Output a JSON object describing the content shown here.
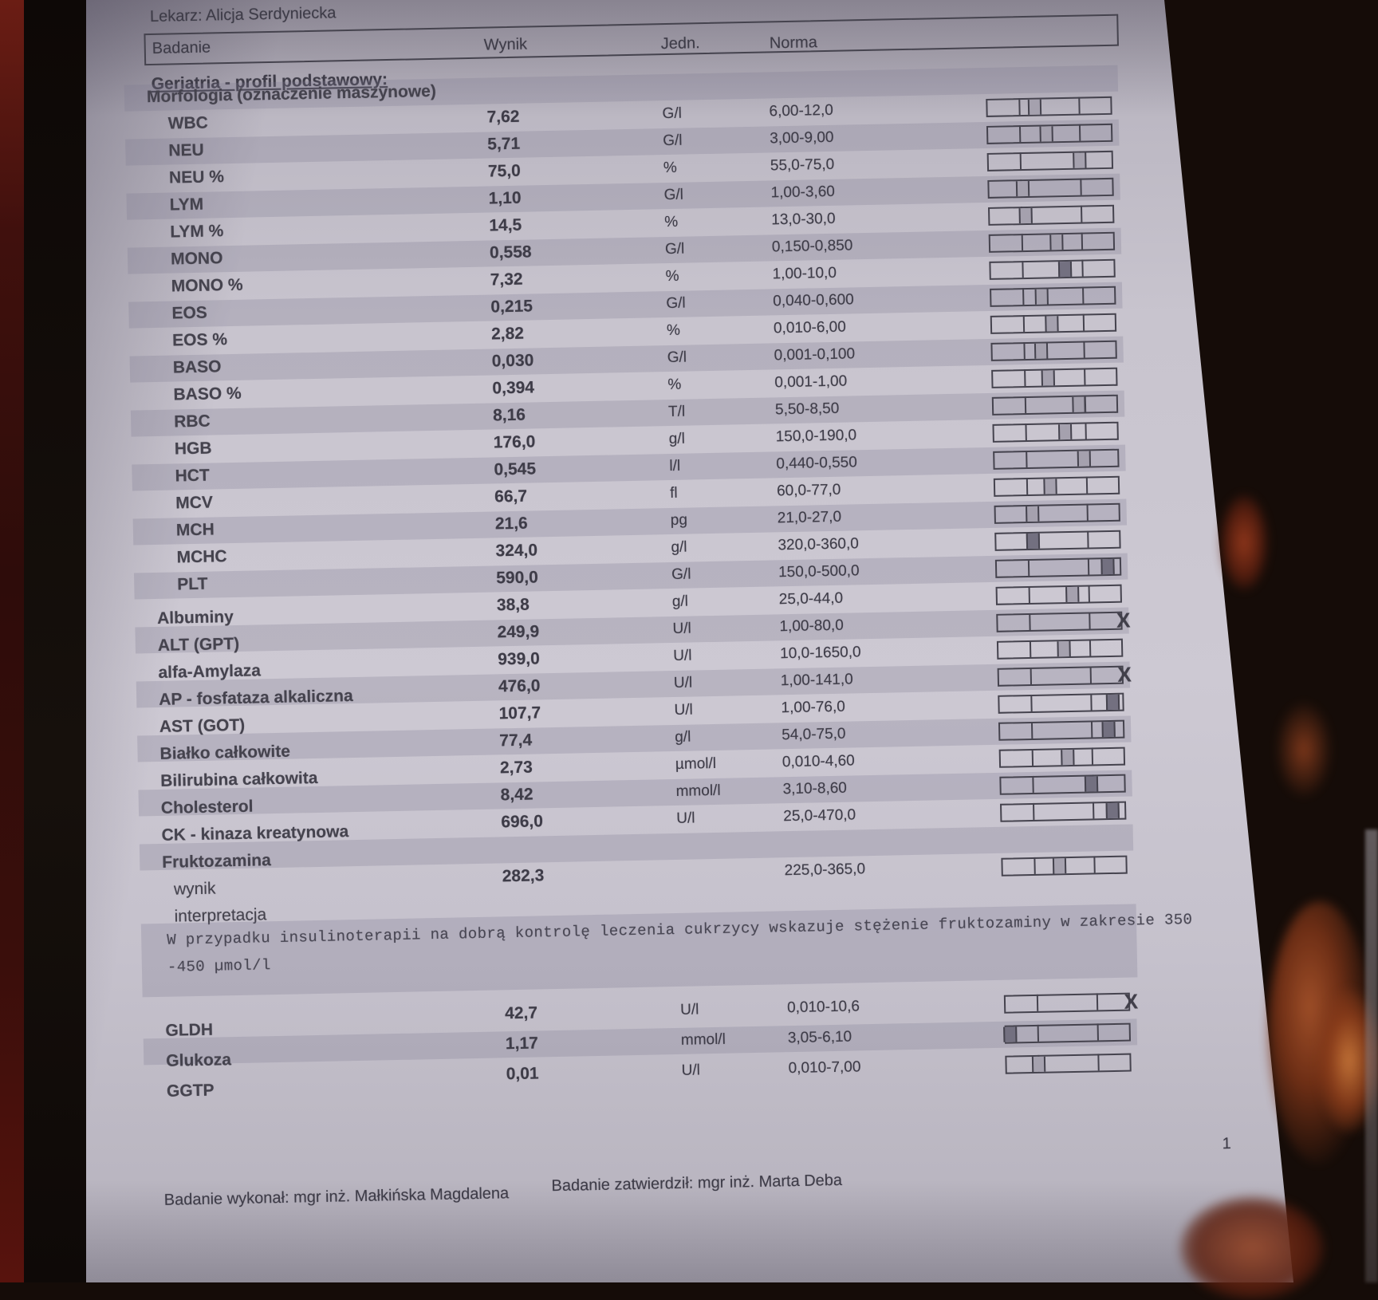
{
  "report": {
    "doctor_line": "Lekarz: Alicja Serdyniecka",
    "columns": {
      "test": "Badanie",
      "result": "Wynik",
      "unit": "Jedn.",
      "norm": "Norma"
    },
    "section_title": "Geriatria - profil podstawowy:",
    "rows": [
      {
        "label": "Morfologia (oznaczenie maszynowe)",
        "value": "",
        "unit": "",
        "norm": "",
        "type": "section",
        "band": true,
        "bar": null
      },
      {
        "label": "WBC",
        "value": "7,62",
        "unit": "G/l",
        "norm": "6,00-12,0",
        "type": "sub",
        "band": false,
        "bar": {
          "pos": 38.5
        }
      },
      {
        "label": "NEU",
        "value": "5,71",
        "unit": "G/l",
        "norm": "3,00-9,00",
        "type": "sub",
        "band": true,
        "bar": {
          "pos": 47.6
        }
      },
      {
        "label": "NEU %",
        "value": "75,0",
        "unit": "%",
        "norm": "55,0-75,0",
        "type": "sub",
        "band": false,
        "bar": {
          "pos": 74.0
        }
      },
      {
        "label": "LYM",
        "value": "1,10",
        "unit": "G/l",
        "norm": "1,00-3,60",
        "type": "sub",
        "band": true,
        "bar": {
          "pos": 27.0
        }
      },
      {
        "label": "LYM %",
        "value": "14,5",
        "unit": "%",
        "norm": "13,0-30,0",
        "type": "sub",
        "band": false,
        "bar": {
          "pos": 29.4
        }
      },
      {
        "label": "MONO",
        "value": "0,558",
        "unit": "G/l",
        "norm": "0,150-0,850",
        "type": "sub",
        "band": true,
        "bar": {
          "pos": 54.1
        }
      },
      {
        "label": "MONO %",
        "value": "7,32",
        "unit": "%",
        "norm": "1,00-10,0",
        "type": "sub",
        "band": false,
        "bar": {
          "pos": 60.1,
          "dark": true
        }
      },
      {
        "label": "EOS",
        "value": "0,215",
        "unit": "G/l",
        "norm": "0,040-0,600",
        "type": "sub",
        "band": true,
        "bar": {
          "pos": 40.6
        }
      },
      {
        "label": "EOS %",
        "value": "2,82",
        "unit": "%",
        "norm": "0,010-6,00",
        "type": "sub",
        "band": false,
        "bar": {
          "pos": 48.5
        }
      },
      {
        "label": "BASO",
        "value": "0,030",
        "unit": "G/l",
        "norm": "0,001-0,100",
        "type": "sub",
        "band": true,
        "bar": {
          "pos": 39.6
        }
      },
      {
        "label": "BASO %",
        "value": "0,394",
        "unit": "%",
        "norm": "0,001-1,00",
        "type": "sub",
        "band": false,
        "bar": {
          "pos": 44.7
        }
      },
      {
        "label": "RBC",
        "value": "8,16",
        "unit": "T/l",
        "norm": "5,50-8,50",
        "type": "sub",
        "band": true,
        "bar": {
          "pos": 69.3
        }
      },
      {
        "label": "HGB",
        "value": "176,0",
        "unit": "g/l",
        "norm": "150,0-190,0",
        "type": "sub",
        "band": false,
        "bar": {
          "pos": 57.5
        }
      },
      {
        "label": "HCT",
        "value": "0,545",
        "unit": "l/l",
        "norm": "0,440-0,550",
        "type": "sub",
        "band": true,
        "bar": {
          "pos": 72.7
        }
      },
      {
        "label": "MCV",
        "value": "66,7",
        "unit": "fl",
        "norm": "60,0-77,0",
        "type": "sub",
        "band": false,
        "bar": {
          "pos": 44.7
        }
      },
      {
        "label": "MCH",
        "value": "21,6",
        "unit": "pg",
        "norm": "21,0-27,0",
        "type": "sub",
        "band": true,
        "bar": {
          "pos": 30.0
        }
      },
      {
        "label": "MCHC",
        "value": "324,0",
        "unit": "g/l",
        "norm": "320,0-360,0",
        "type": "sub",
        "band": false,
        "bar": {
          "pos": 30.0,
          "dark": true
        }
      },
      {
        "label": "PLT",
        "value": "590,0",
        "unit": "G/l",
        "norm": "150,0-500,0",
        "type": "sub",
        "band": true,
        "bar": {
          "pos": 90.0,
          "dark": true
        }
      },
      {
        "label": "Albuminy",
        "value": "38,8",
        "unit": "g/l",
        "norm": "25,0-44,0",
        "type": "main",
        "band": false,
        "bar": {
          "pos": 61.3
        }
      },
      {
        "label": "ALT (GPT)",
        "value": "249,9",
        "unit": "U/l",
        "norm": "1,00-80,0",
        "type": "main",
        "band": true,
        "bar": {
          "out_high": true
        }
      },
      {
        "label": "alfa-Amylaza",
        "value": "939,0",
        "unit": "U/l",
        "norm": "10,0-1650,0",
        "type": "main",
        "band": false,
        "bar": {
          "pos": 53.3
        }
      },
      {
        "label": "AP - fosfataza alkaliczna",
        "value": "476,0",
        "unit": "U/l",
        "norm": "1,00-141,0",
        "type": "main",
        "band": true,
        "bar": {
          "out_high": true
        }
      },
      {
        "label": "AST (GOT)",
        "value": "107,7",
        "unit": "U/l",
        "norm": "1,00-76,0",
        "type": "main",
        "band": false,
        "bar": {
          "pos": 92.0,
          "dark": true
        }
      },
      {
        "label": "Białko całkowite",
        "value": "77,4",
        "unit": "g/l",
        "norm": "54,0-75,0",
        "type": "main",
        "band": true,
        "bar": {
          "pos": 88.0,
          "dark": true
        }
      },
      {
        "label": "Bilirubina całkowita",
        "value": "2,73",
        "unit": "µmol/l",
        "norm": "0,010-4,60",
        "type": "main",
        "band": false,
        "bar": {
          "pos": 54.7
        }
      },
      {
        "label": "Cholesterol",
        "value": "8,42",
        "unit": "mmol/l",
        "norm": "3,10-8,60",
        "type": "main",
        "band": true,
        "bar": {
          "pos": 73.4,
          "dark": true
        }
      },
      {
        "label": "CK - kinaza kreatynowa",
        "value": "696,0",
        "unit": "U/l",
        "norm": "25,0-470,0",
        "type": "main",
        "band": false,
        "bar": {
          "pos": 90.0,
          "dark": true
        }
      },
      {
        "label": "Fruktozamina",
        "value": "",
        "unit": "",
        "norm": "",
        "type": "section-main",
        "band": true,
        "bar": null
      },
      {
        "label": "wynik",
        "value": "282,3",
        "unit": "",
        "norm": "225,0-365,0",
        "type": "subword",
        "band": false,
        "bar": {
          "pos": 46.0
        }
      },
      {
        "label": "interpretacja",
        "value": "",
        "unit": "",
        "norm": "",
        "type": "subword",
        "band": false,
        "bar": null
      }
    ],
    "interpretation": {
      "line1": "W przypadku insulinoterapii na dobrą kontrolę leczenia cukrzycy wskazuje stężenie fruktozaminy w zakresie 350",
      "line2": "-450 µmol/l"
    },
    "bottom_rows": [
      {
        "label": "GLDH",
        "value": "42,7",
        "unit": "U/l",
        "norm": "0,010-10,6",
        "type": "main",
        "band": false,
        "bar": {
          "out_high": true
        }
      },
      {
        "label": "Glukoza",
        "value": "1,17",
        "unit": "mmol/l",
        "norm": "3,05-6,10",
        "type": "main",
        "band": true,
        "bar": {
          "pos": 3.5,
          "dark": true
        }
      },
      {
        "label": "GGTP",
        "value": "0,01",
        "unit": "U/l",
        "norm": "0,010-7,00",
        "type": "main",
        "band": false,
        "bar": {
          "pos": 26.0
        }
      }
    ],
    "footer": {
      "performed": "Badanie wykonał: mgr inż. Małkińska Magdalena",
      "approved": "Badanie zatwierdził: mgr inż. Marta Deba",
      "page_number": "1"
    }
  },
  "colors": {
    "paper": "#c8c4ce",
    "band": "#aba6b6",
    "ink": "#3e3c48",
    "background": "#150c08",
    "maroon_edge": "#5a150f",
    "copper_glow": "#b65a2e"
  }
}
